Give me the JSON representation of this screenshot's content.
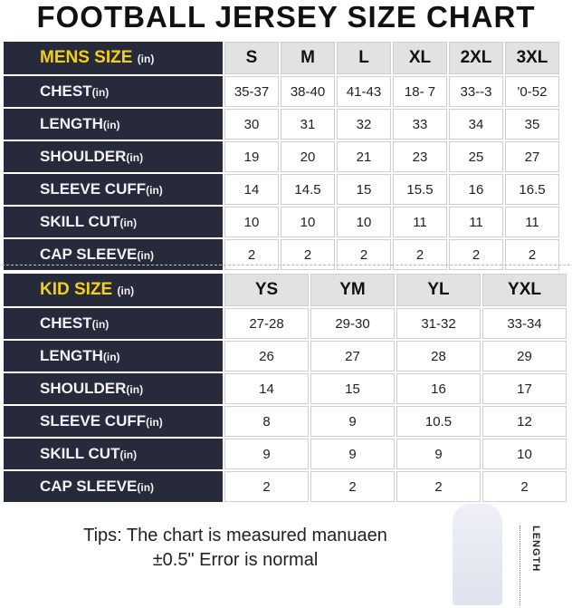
{
  "title": "FOOTBALL JERSEY SIZE CHART",
  "unit": "(in)",
  "mens": {
    "heading": "MENS SIZE",
    "sizes": [
      "S",
      "M",
      "L",
      "XL",
      "2XL",
      "3XL"
    ],
    "rows": [
      {
        "label": "CHEST",
        "values": [
          "35-37",
          "38-40",
          "41-43",
          "18- 7",
          "33--3",
          "'0-52"
        ]
      },
      {
        "label": "LENGTH",
        "values": [
          "30",
          "31",
          "32",
          "33",
          "34",
          "35"
        ]
      },
      {
        "label": "SHOULDER",
        "values": [
          "19",
          "20",
          "21",
          "23",
          "25",
          "27"
        ]
      },
      {
        "label": "SLEEVE CUFF",
        "values": [
          "14",
          "14.5",
          "15",
          "15.5",
          "16",
          "16.5"
        ]
      },
      {
        "label": "SKILL CUT",
        "values": [
          "10",
          "10",
          "10",
          "11",
          "11",
          "11"
        ]
      },
      {
        "label": "CAP SLEEVE",
        "values": [
          "2",
          "2",
          "2",
          "2",
          "2",
          "2"
        ]
      }
    ]
  },
  "kids": {
    "heading": "KID SIZE",
    "sizes": [
      "YS",
      "YM",
      "YL",
      "YXL"
    ],
    "rows": [
      {
        "label": "CHEST",
        "values": [
          "27-28",
          "29-30",
          "31-32",
          "33-34"
        ]
      },
      {
        "label": "LENGTH",
        "values": [
          "26",
          "27",
          "28",
          "29"
        ]
      },
      {
        "label": "SHOULDER",
        "values": [
          "14",
          "15",
          "16",
          "17"
        ]
      },
      {
        "label": "SLEEVE CUFF",
        "values": [
          "8",
          "9",
          "10.5",
          "12"
        ]
      },
      {
        "label": "SKILL CUT",
        "values": [
          "9",
          "9",
          "9",
          "10"
        ]
      },
      {
        "label": "CAP SLEEVE",
        "values": [
          "2",
          "2",
          "2",
          "2"
        ]
      }
    ]
  },
  "tips": {
    "line1": "Tips: The chart is measured manuaen",
    "line2": "±0.5\" Error is normal"
  },
  "figure_label": "LENGTH",
  "colors": {
    "label_bg": "#262a3b",
    "heading_yellow": "#f5cf10",
    "header_bg": "#e2e2e2"
  }
}
